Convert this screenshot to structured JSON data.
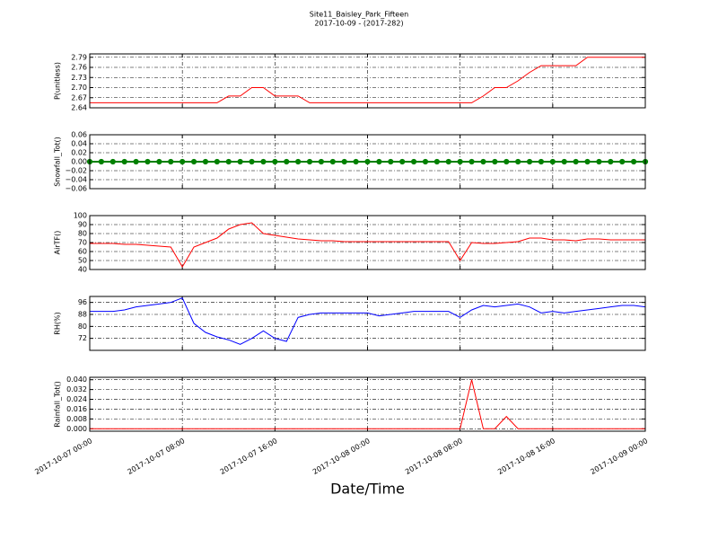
{
  "chart_data": [
    {
      "type": "line",
      "title": "Site11_Baisley_Park_Fifteen",
      "subtitle": "2017-10-09 - (2017-282)",
      "ylabel": "P(unitless)",
      "x": [
        "2017-10-07 00:00",
        "2017-10-07 01:00",
        "2017-10-07 02:00",
        "2017-10-07 03:00",
        "2017-10-07 04:00",
        "2017-10-07 05:00",
        "2017-10-07 06:00",
        "2017-10-07 07:00",
        "2017-10-07 08:00",
        "2017-10-07 09:00",
        "2017-10-07 10:00",
        "2017-10-07 11:00",
        "2017-10-07 12:00",
        "2017-10-07 13:00",
        "2017-10-07 14:00",
        "2017-10-07 15:00",
        "2017-10-07 16:00",
        "2017-10-07 17:00",
        "2017-10-07 18:00",
        "2017-10-07 19:00",
        "2017-10-07 20:00",
        "2017-10-07 21:00",
        "2017-10-07 22:00",
        "2017-10-07 23:00",
        "2017-10-08 00:00",
        "2017-10-08 01:00",
        "2017-10-08 02:00",
        "2017-10-08 03:00",
        "2017-10-08 04:00",
        "2017-10-08 05:00",
        "2017-10-08 06:00",
        "2017-10-08 07:00",
        "2017-10-08 08:00",
        "2017-10-08 09:00",
        "2017-10-08 10:00",
        "2017-10-08 11:00",
        "2017-10-08 12:00",
        "2017-10-08 13:00",
        "2017-10-08 14:00",
        "2017-10-08 15:00",
        "2017-10-08 16:00",
        "2017-10-08 17:00",
        "2017-10-08 18:00",
        "2017-10-08 19:00",
        "2017-10-08 20:00",
        "2017-10-08 21:00",
        "2017-10-08 22:00",
        "2017-10-08 23:00",
        "2017-10-09 00:00"
      ],
      "series": [
        {
          "color": "#ff0000",
          "values": [
            2.655,
            2.655,
            2.655,
            2.655,
            2.655,
            2.655,
            2.655,
            2.655,
            2.655,
            2.655,
            2.655,
            2.655,
            2.675,
            2.675,
            2.7,
            2.7,
            2.675,
            2.675,
            2.675,
            2.655,
            2.655,
            2.655,
            2.655,
            2.655,
            2.655,
            2.655,
            2.655,
            2.655,
            2.655,
            2.655,
            2.655,
            2.655,
            2.655,
            2.655,
            2.675,
            2.7,
            2.7,
            2.72,
            2.745,
            2.765,
            2.765,
            2.765,
            2.765,
            2.79,
            2.79,
            2.79,
            2.79,
            2.79,
            2.79
          ]
        }
      ],
      "xlim": [
        "2017-10-07 00:00",
        "2017-10-09 00:00"
      ],
      "xticks": [
        "2017-10-07 00:00",
        "2017-10-07 08:00",
        "2017-10-07 16:00",
        "2017-10-08 00:00",
        "2017-10-08 08:00",
        "2017-10-08 16:00",
        "2017-10-09 00:00"
      ],
      "ylim": [
        2.64,
        2.8
      ],
      "yticks": [
        2.64,
        2.67,
        {
          "value": 2.7,
          "label": "2.70"
        },
        2.73,
        2.76,
        2.79
      ],
      "grid": true
    },
    {
      "type": "line",
      "ylabel": "Snowfall_Tot()",
      "markers": true,
      "x": [
        "2017-10-07 00:00",
        "2017-10-07 01:00",
        "2017-10-07 02:00",
        "2017-10-07 03:00",
        "2017-10-07 04:00",
        "2017-10-07 05:00",
        "2017-10-07 06:00",
        "2017-10-07 07:00",
        "2017-10-07 08:00",
        "2017-10-07 09:00",
        "2017-10-07 10:00",
        "2017-10-07 11:00",
        "2017-10-07 12:00",
        "2017-10-07 13:00",
        "2017-10-07 14:00",
        "2017-10-07 15:00",
        "2017-10-07 16:00",
        "2017-10-07 17:00",
        "2017-10-07 18:00",
        "2017-10-07 19:00",
        "2017-10-07 20:00",
        "2017-10-07 21:00",
        "2017-10-07 22:00",
        "2017-10-07 23:00",
        "2017-10-08 00:00",
        "2017-10-08 01:00",
        "2017-10-08 02:00",
        "2017-10-08 03:00",
        "2017-10-08 04:00",
        "2017-10-08 05:00",
        "2017-10-08 06:00",
        "2017-10-08 07:00",
        "2017-10-08 08:00",
        "2017-10-08 09:00",
        "2017-10-08 10:00",
        "2017-10-08 11:00",
        "2017-10-08 12:00",
        "2017-10-08 13:00",
        "2017-10-08 14:00",
        "2017-10-08 15:00",
        "2017-10-08 16:00",
        "2017-10-08 17:00",
        "2017-10-08 18:00",
        "2017-10-08 19:00",
        "2017-10-08 20:00",
        "2017-10-08 21:00",
        "2017-10-08 22:00",
        "2017-10-08 23:00",
        "2017-10-09 00:00"
      ],
      "series": [
        {
          "color": "#008000",
          "values": [
            0,
            0,
            0,
            0,
            0,
            0,
            0,
            0,
            0,
            0,
            0,
            0,
            0,
            0,
            0,
            0,
            0,
            0,
            0,
            0,
            0,
            0,
            0,
            0,
            0,
            0,
            0,
            0,
            0,
            0,
            0,
            0,
            0,
            0,
            0,
            0,
            0,
            0,
            0,
            0,
            0,
            0,
            0,
            0,
            0,
            0,
            0,
            0,
            0
          ]
        }
      ],
      "xlim": [
        "2017-10-07 00:00",
        "2017-10-09 00:00"
      ],
      "xticks": [
        "2017-10-07 00:00",
        "2017-10-07 08:00",
        "2017-10-07 16:00",
        "2017-10-08 00:00",
        "2017-10-08 08:00",
        "2017-10-08 16:00",
        "2017-10-09 00:00"
      ],
      "ylim": [
        -0.06,
        0.06
      ],
      "yticks": [
        {
          "value": -0.06,
          "label": "−0.06"
        },
        {
          "value": -0.04,
          "label": "−0.04"
        },
        {
          "value": -0.02,
          "label": "−0.02"
        },
        {
          "value": 0,
          "label": "0.00"
        },
        0.02,
        0.04,
        0.06
      ],
      "grid": true
    },
    {
      "type": "line",
      "ylabel": "AirTF()",
      "x": [
        "2017-10-07 00:00",
        "2017-10-07 01:00",
        "2017-10-07 02:00",
        "2017-10-07 03:00",
        "2017-10-07 04:00",
        "2017-10-07 05:00",
        "2017-10-07 06:00",
        "2017-10-07 07:00",
        "2017-10-07 08:00",
        "2017-10-07 09:00",
        "2017-10-07 10:00",
        "2017-10-07 11:00",
        "2017-10-07 12:00",
        "2017-10-07 13:00",
        "2017-10-07 14:00",
        "2017-10-07 15:00",
        "2017-10-07 16:00",
        "2017-10-07 17:00",
        "2017-10-07 18:00",
        "2017-10-07 19:00",
        "2017-10-07 20:00",
        "2017-10-07 21:00",
        "2017-10-07 22:00",
        "2017-10-07 23:00",
        "2017-10-08 00:00",
        "2017-10-08 01:00",
        "2017-10-08 02:00",
        "2017-10-08 03:00",
        "2017-10-08 04:00",
        "2017-10-08 05:00",
        "2017-10-08 06:00",
        "2017-10-08 07:00",
        "2017-10-08 08:00",
        "2017-10-08 09:00",
        "2017-10-08 10:00",
        "2017-10-08 11:00",
        "2017-10-08 12:00",
        "2017-10-08 13:00",
        "2017-10-08 14:00",
        "2017-10-08 15:00",
        "2017-10-08 16:00",
        "2017-10-08 17:00",
        "2017-10-08 18:00",
        "2017-10-08 19:00",
        "2017-10-08 20:00",
        "2017-10-08 21:00",
        "2017-10-08 22:00",
        "2017-10-08 23:00",
        "2017-10-09 00:00"
      ],
      "series": [
        {
          "color": "#ff0000",
          "values": [
            69,
            69,
            69,
            68,
            68,
            67,
            66,
            65,
            43,
            65,
            70,
            75,
            85,
            90,
            92,
            80,
            78,
            76,
            74,
            73,
            72,
            72,
            71,
            71,
            71,
            71,
            71,
            71,
            71,
            71,
            71,
            71,
            50,
            70,
            69,
            69,
            70,
            71,
            75,
            75,
            73,
            73,
            72,
            74,
            74,
            73,
            73,
            73,
            73
          ]
        }
      ],
      "xlim": [
        "2017-10-07 00:00",
        "2017-10-09 00:00"
      ],
      "xticks": [
        "2017-10-07 00:00",
        "2017-10-07 08:00",
        "2017-10-07 16:00",
        "2017-10-08 00:00",
        "2017-10-08 08:00",
        "2017-10-08 16:00",
        "2017-10-09 00:00"
      ],
      "ylim": [
        40,
        100
      ],
      "yticks": [
        40,
        50,
        60,
        70,
        80,
        90,
        100
      ],
      "grid": true
    },
    {
      "type": "line",
      "ylabel": "RH(%)",
      "x": [
        "2017-10-07 00:00",
        "2017-10-07 01:00",
        "2017-10-07 02:00",
        "2017-10-07 03:00",
        "2017-10-07 04:00",
        "2017-10-07 05:00",
        "2017-10-07 06:00",
        "2017-10-07 07:00",
        "2017-10-07 08:00",
        "2017-10-07 09:00",
        "2017-10-07 10:00",
        "2017-10-07 11:00",
        "2017-10-07 12:00",
        "2017-10-07 13:00",
        "2017-10-07 14:00",
        "2017-10-07 15:00",
        "2017-10-07 16:00",
        "2017-10-07 17:00",
        "2017-10-07 18:00",
        "2017-10-07 19:00",
        "2017-10-07 20:00",
        "2017-10-07 21:00",
        "2017-10-07 22:00",
        "2017-10-07 23:00",
        "2017-10-08 00:00",
        "2017-10-08 01:00",
        "2017-10-08 02:00",
        "2017-10-08 03:00",
        "2017-10-08 04:00",
        "2017-10-08 05:00",
        "2017-10-08 06:00",
        "2017-10-08 07:00",
        "2017-10-08 08:00",
        "2017-10-08 09:00",
        "2017-10-08 10:00",
        "2017-10-08 11:00",
        "2017-10-08 12:00",
        "2017-10-08 13:00",
        "2017-10-08 14:00",
        "2017-10-08 15:00",
        "2017-10-08 16:00",
        "2017-10-08 17:00",
        "2017-10-08 18:00",
        "2017-10-08 19:00",
        "2017-10-08 20:00",
        "2017-10-08 21:00",
        "2017-10-08 22:00",
        "2017-10-08 23:00",
        "2017-10-09 00:00"
      ],
      "series": [
        {
          "color": "#0000ff",
          "values": [
            90,
            90,
            90,
            91,
            93,
            94,
            95,
            96,
            99,
            82,
            76,
            73,
            71,
            68,
            72,
            77,
            72,
            70,
            86,
            88,
            89,
            89,
            89,
            89,
            89,
            87,
            88,
            89,
            90,
            90,
            90,
            90,
            86,
            91,
            94,
            93,
            94,
            95,
            93,
            89,
            90,
            89,
            90,
            91,
            92,
            93,
            94,
            94,
            93
          ]
        }
      ],
      "xlim": [
        "2017-10-07 00:00",
        "2017-10-09 00:00"
      ],
      "xticks": [
        "2017-10-07 00:00",
        "2017-10-07 08:00",
        "2017-10-07 16:00",
        "2017-10-08 00:00",
        "2017-10-08 08:00",
        "2017-10-08 16:00",
        "2017-10-09 00:00"
      ],
      "ylim": [
        64,
        100
      ],
      "yticks": [
        72,
        80,
        88,
        96
      ],
      "grid": true
    },
    {
      "type": "line",
      "ylabel": "Rainfall_Tot()",
      "xlabel": "Date/Time",
      "x": [
        "2017-10-07 00:00",
        "2017-10-07 01:00",
        "2017-10-07 02:00",
        "2017-10-07 03:00",
        "2017-10-07 04:00",
        "2017-10-07 05:00",
        "2017-10-07 06:00",
        "2017-10-07 07:00",
        "2017-10-07 08:00",
        "2017-10-07 09:00",
        "2017-10-07 10:00",
        "2017-10-07 11:00",
        "2017-10-07 12:00",
        "2017-10-07 13:00",
        "2017-10-07 14:00",
        "2017-10-07 15:00",
        "2017-10-07 16:00",
        "2017-10-07 17:00",
        "2017-10-07 18:00",
        "2017-10-07 19:00",
        "2017-10-07 20:00",
        "2017-10-07 21:00",
        "2017-10-07 22:00",
        "2017-10-07 23:00",
        "2017-10-08 00:00",
        "2017-10-08 01:00",
        "2017-10-08 02:00",
        "2017-10-08 03:00",
        "2017-10-08 04:00",
        "2017-10-08 05:00",
        "2017-10-08 06:00",
        "2017-10-08 07:00",
        "2017-10-08 08:00",
        "2017-10-08 09:00",
        "2017-10-08 10:00",
        "2017-10-08 11:00",
        "2017-10-08 12:00",
        "2017-10-08 13:00",
        "2017-10-08 14:00",
        "2017-10-08 15:00",
        "2017-10-08 16:00",
        "2017-10-08 17:00",
        "2017-10-08 18:00",
        "2017-10-08 19:00",
        "2017-10-08 20:00",
        "2017-10-08 21:00",
        "2017-10-08 22:00",
        "2017-10-08 23:00",
        "2017-10-09 00:00"
      ],
      "series": [
        {
          "color": "#ff0000",
          "values": [
            0,
            0,
            0,
            0,
            0,
            0,
            0,
            0,
            0,
            0,
            0,
            0,
            0,
            0,
            0,
            0,
            0,
            0,
            0,
            0,
            0,
            0,
            0,
            0,
            0,
            0,
            0,
            0,
            0,
            0,
            0,
            0,
            0,
            0.04,
            0,
            0,
            0.01,
            0,
            0,
            0,
            0,
            0,
            0,
            0,
            0,
            0,
            0,
            0,
            0
          ]
        }
      ],
      "xlim": [
        "2017-10-07 00:00",
        "2017-10-09 00:00"
      ],
      "xticks": [
        "2017-10-07 00:00",
        "2017-10-07 08:00",
        "2017-10-07 16:00",
        "2017-10-08 00:00",
        "2017-10-08 08:00",
        "2017-10-08 16:00",
        "2017-10-09 00:00"
      ],
      "ylim": [
        -0.002,
        0.042
      ],
      "yticks": [
        {
          "value": 0,
          "label": "0.000"
        },
        0.008,
        0.016,
        0.024,
        0.032,
        {
          "value": 0.04,
          "label": "0.040"
        }
      ],
      "grid": true
    }
  ]
}
